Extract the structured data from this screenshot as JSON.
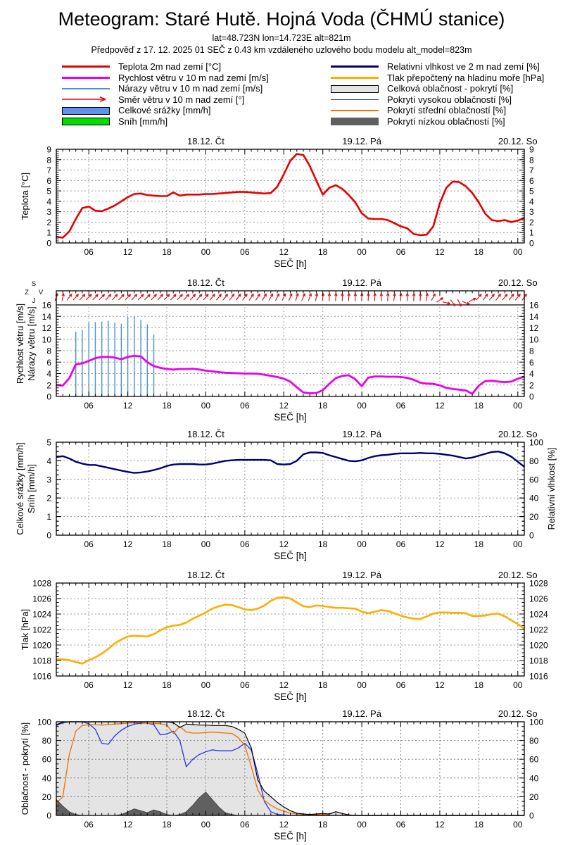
{
  "header": {
    "title": "Meteogram: Staré Hutě. Hojná Voda (ČHMÚ stanice)",
    "subtitle_location": "lat=48.723N lon=14.723E alt=821m",
    "subtitle_forecast": "Předpověď z 17. 12. 2025 01 SEČ z 0.43 km vzdáleného uzlového bodu modelu alt_model=823m"
  },
  "legend": {
    "left": [
      {
        "label": "Teplota 2m nad zemí [°C]",
        "swatch": "line",
        "color": "#e60000",
        "thick": 3
      },
      {
        "label": "Rychlost větru v 10 m nad zemí [m/s]",
        "swatch": "line",
        "color": "#ea00ea",
        "thick": 3
      },
      {
        "label": "Nárazy větru v 10 m nad zemí [m/s]",
        "swatch": "line",
        "color": "#4a90d0",
        "thick": 1.5
      },
      {
        "label": "Směr větru v 10 m nad zemí [°]",
        "swatch": "arrow",
        "color": "#e60000",
        "thick": 1.5
      },
      {
        "label": "Celkové srážky [mm/h]",
        "swatch": "box",
        "color": "#6090f0",
        "border": "#000000"
      },
      {
        "label": "Sníh [mm/h]",
        "swatch": "box",
        "color": "#00dd00",
        "border": "#000000"
      }
    ],
    "right": [
      {
        "label": "Relativní vlhkost ve 2 m nad zemí [%]",
        "swatch": "line",
        "color": "#000073",
        "thick": 3
      },
      {
        "label": "Tlak přepočtený na hladinu moře [hPa]",
        "swatch": "line",
        "color": "#ffae00",
        "thick": 3
      },
      {
        "label": "Celková oblačnost - pokrytí [%]",
        "swatch": "box",
        "color": "#e4e4e4",
        "border": "#000000"
      },
      {
        "label": "Pokrytí vysokou oblačností [%]",
        "swatch": "line",
        "color": "#2233ee",
        "thick": 1.5
      },
      {
        "label": "Pokrytí střední oblačností [%]",
        "swatch": "line",
        "color": "#f07000",
        "thick": 1.5
      },
      {
        "label": "Pokrytí nízkou oblačností [%]",
        "swatch": "box",
        "color": "#606060",
        "border": "#606060"
      }
    ]
  },
  "axis": {
    "hours_start": 1,
    "hours_end": 73,
    "x_major_every": 6,
    "x_tick_label_cycle": [
      "06",
      "12",
      "18",
      "00"
    ],
    "xlabel": "SEČ [h]",
    "day_labels": [
      {
        "hour": 24,
        "label": "18.12. Čt"
      },
      {
        "hour": 48,
        "label": "19.12. Pá"
      },
      {
        "hour": 72,
        "label": "20.12. So"
      }
    ]
  },
  "compass": {
    "north": "S",
    "south": "J",
    "east": "V",
    "west": "Z"
  },
  "chart_data": [
    {
      "id": "temperature",
      "type": "line",
      "ylabels_left": [
        "Teplota [°C]"
      ],
      "ylim": [
        0,
        9
      ],
      "ytick": 1,
      "yminor": 0.2,
      "series": [
        {
          "name": "Teplota 2m nad zemí [°C]",
          "style": "line",
          "color": "#e60000",
          "width": 2.6,
          "values": [
            0.6,
            0.5,
            1.1,
            2.3,
            3.35,
            3.5,
            3.1,
            3.05,
            3.3,
            3.6,
            4.0,
            4.4,
            4.7,
            4.75,
            4.6,
            4.55,
            4.5,
            4.5,
            4.85,
            4.55,
            4.65,
            4.65,
            4.65,
            4.7,
            4.7,
            4.75,
            4.8,
            4.85,
            4.9,
            4.9,
            4.85,
            4.8,
            4.75,
            4.8,
            5.4,
            6.6,
            7.9,
            8.55,
            8.45,
            7.4,
            6.0,
            4.65,
            5.3,
            5.55,
            5.2,
            4.6,
            3.9,
            2.85,
            2.35,
            2.3,
            2.3,
            2.2,
            1.9,
            1.6,
            1.4,
            0.85,
            0.75,
            0.8,
            1.6,
            3.8,
            5.3,
            5.9,
            5.85,
            5.45,
            4.8,
            3.9,
            2.8,
            2.2,
            2.1,
            2.2,
            2.0,
            2.15,
            2.4
          ]
        }
      ]
    },
    {
      "id": "wind",
      "type": "line",
      "ylabels_left": [
        "Rychlost větru [m/s]",
        "Nárazy větru [m/s]"
      ],
      "ylim": [
        0,
        16
      ],
      "ytick": 2,
      "yminor": 0.5,
      "top_line_value": 16,
      "series": [
        {
          "name": "Rychlost větru v 10 m nad zemí [m/s]",
          "style": "line",
          "color": "#ea00ea",
          "width": 2.8,
          "values": [
            2.0,
            1.9,
            3.2,
            5.6,
            5.8,
            6.2,
            6.7,
            6.9,
            6.9,
            6.8,
            6.5,
            6.9,
            7.1,
            7.0,
            6.0,
            5.3,
            5.0,
            4.8,
            4.7,
            4.8,
            4.8,
            4.85,
            4.7,
            4.5,
            4.4,
            4.25,
            4.15,
            4.1,
            4.05,
            4.0,
            4.0,
            3.95,
            3.8,
            3.6,
            3.4,
            3.1,
            2.6,
            1.6,
            0.7,
            0.55,
            0.6,
            1.1,
            2.2,
            3.2,
            3.6,
            3.7,
            3.0,
            1.8,
            3.3,
            3.5,
            3.5,
            3.45,
            3.45,
            3.4,
            3.25,
            2.9,
            2.4,
            2.25,
            2.2,
            1.95,
            1.5,
            1.3,
            1.2,
            1.05,
            0.45,
            1.9,
            2.7,
            2.75,
            2.6,
            2.5,
            2.6,
            3.1,
            3.45
          ]
        }
      ],
      "gusts": {
        "name": "Nárazy větru v 10 m nad zemí [m/s]",
        "color": "#4a90d0",
        "hours": [
          4,
          5,
          6,
          7,
          8,
          9,
          10,
          11,
          12,
          13,
          14,
          15,
          16
        ],
        "values": [
          11.3,
          11.6,
          12.9,
          13.0,
          13.1,
          13.2,
          12.9,
          12.7,
          13.9,
          14.0,
          13.4,
          12.6,
          10.8
        ]
      },
      "wind_direction": {
        "name": "Směr větru v 10 m nad zemí [°]",
        "color": "#e60000",
        "angles_deg": [
          18,
          12,
          38,
          42,
          44,
          45,
          44,
          45,
          44,
          43,
          44,
          45,
          43,
          44,
          45,
          44,
          43,
          45,
          44,
          44,
          43,
          42,
          42,
          41,
          40,
          40,
          39,
          38,
          37,
          36,
          35,
          34,
          32,
          30,
          28,
          26,
          22,
          18,
          24,
          20,
          12,
          6,
          2,
          4,
          1,
          3,
          1,
          4,
          2,
          3,
          1,
          4,
          8,
          4,
          1,
          3,
          2,
          10,
          30,
          55,
          105,
          145,
          155,
          110,
          65,
          42,
          38,
          40,
          38,
          40,
          38,
          40,
          36
        ]
      }
    },
    {
      "id": "humidity",
      "type": "line",
      "ylabels_left": [
        "Celkové srážky [mm/h]",
        "Sníh [mm/h]"
      ],
      "ylim": [
        0,
        5
      ],
      "ytick": 1,
      "yminor": 0.25,
      "ylabel_right": "Relativní vlhkost [%]",
      "ylim_right": [
        0,
        100
      ],
      "ytick_right": 20,
      "yminor_right": 5,
      "series": [
        {
          "name": "Relativní vlhkost ve 2 m nad zemí [%]",
          "style": "line",
          "axis": "right",
          "color": "#000073",
          "width": 2.4,
          "values": [
            84,
            85,
            82.5,
            79,
            77,
            75.5,
            75.5,
            74,
            72.5,
            71,
            69.5,
            68,
            67,
            67.5,
            68.5,
            70,
            72,
            74.5,
            76,
            76.5,
            76.5,
            76.5,
            76,
            76,
            77,
            78.5,
            80,
            80.5,
            81,
            81,
            81,
            81,
            81,
            80.5,
            76.5,
            76,
            76.5,
            80,
            87,
            89,
            89,
            88.5,
            86,
            84,
            82,
            80,
            79.5,
            80.5,
            83,
            85,
            86,
            86.5,
            87.5,
            88,
            88,
            88,
            88.5,
            88,
            88,
            87.5,
            86.5,
            85.5,
            84,
            82.5,
            83.5,
            85.5,
            87.5,
            89.5,
            90,
            88,
            84.5,
            79,
            73.5
          ]
        }
      ]
    },
    {
      "id": "pressure",
      "type": "line",
      "ylabels_left": [
        "Tlak [hPa]"
      ],
      "ylim": [
        1016,
        1028
      ],
      "ytick": 2,
      "yminor": 0.5,
      "series": [
        {
          "name": "Tlak přepočtený na hladinu moře [hPa]",
          "style": "line",
          "color": "#ffae00",
          "width": 2.6,
          "values": [
            1018.2,
            1018.15,
            1018.05,
            1017.8,
            1017.6,
            1018.05,
            1018.4,
            1018.9,
            1019.5,
            1020.2,
            1020.7,
            1021.1,
            1021.2,
            1021.15,
            1021.1,
            1021.4,
            1021.9,
            1022.3,
            1022.5,
            1022.6,
            1022.9,
            1023.4,
            1023.8,
            1024.2,
            1024.7,
            1025.0,
            1025.2,
            1025.15,
            1024.9,
            1024.6,
            1024.5,
            1024.7,
            1025.1,
            1025.7,
            1026.1,
            1026.15,
            1026.0,
            1025.5,
            1025.0,
            1024.9,
            1025.1,
            1025.05,
            1024.9,
            1024.8,
            1024.8,
            1024.75,
            1024.7,
            1024.3,
            1024.1,
            1024.3,
            1024.5,
            1024.4,
            1024.1,
            1023.8,
            1023.55,
            1023.4,
            1023.35,
            1023.7,
            1024.05,
            1024.2,
            1024.2,
            1024.15,
            1024.15,
            1024.1,
            1023.75,
            1023.75,
            1023.8,
            1024.0,
            1024.05,
            1023.7,
            1023.2,
            1022.7,
            1022.1
          ]
        }
      ]
    },
    {
      "id": "cloud",
      "type": "area+line",
      "ylabels_left": [
        "Oblačnost - pokrytí [%]"
      ],
      "ylim": [
        0,
        100
      ],
      "ytick": 20,
      "yminor": 5,
      "series": [
        {
          "name": "Celková oblačnost - pokrytí [%]",
          "style": "area",
          "fill": "#e4e4e4",
          "outline": "#000000",
          "values": [
            97,
            99.5,
            100,
            100,
            100,
            100,
            100,
            100,
            100,
            100,
            100,
            100,
            100,
            100,
            100,
            100,
            100,
            100,
            99,
            94,
            97.5,
            97,
            96.5,
            96.5,
            96,
            96,
            96,
            95,
            92,
            88,
            72,
            38,
            26,
            20,
            14,
            9,
            5,
            2.5,
            1.5,
            1,
            1.5,
            2,
            1.5,
            4,
            2,
            0.5,
            0,
            0,
            0,
            0,
            0,
            0,
            0,
            0,
            0,
            0,
            0,
            0,
            0,
            0,
            0,
            0,
            0,
            0,
            0,
            0,
            0,
            0,
            0,
            0,
            0,
            0,
            0
          ]
        },
        {
          "name": "Pokrytí nízkou oblačností [%]",
          "style": "area",
          "fill": "#606060",
          "outline": "#3c3c3c",
          "values": [
            17,
            10,
            4,
            1,
            0,
            0,
            0,
            0,
            0,
            0,
            1,
            4,
            7,
            5,
            3,
            6,
            4,
            1,
            0,
            1,
            4,
            11,
            19,
            25,
            17,
            9,
            3,
            1,
            0,
            0,
            0,
            0,
            0,
            0,
            0,
            0,
            0,
            0,
            0,
            0,
            0,
            0,
            0,
            0,
            0,
            0,
            0,
            0,
            0,
            0,
            0,
            0,
            0,
            0,
            0,
            0,
            0,
            0,
            0,
            0,
            0,
            0,
            0,
            0,
            0,
            0,
            0,
            0,
            0,
            0,
            0,
            0,
            0
          ]
        },
        {
          "name": "Pokrytí vysokou oblačností [%]",
          "style": "line",
          "color": "#2233ee",
          "width": 1.3,
          "values": [
            96,
            99,
            100,
            100,
            100,
            98,
            92,
            77,
            76,
            85,
            91,
            95,
            97.5,
            98.5,
            98.5,
            97,
            86,
            87,
            90,
            80,
            52,
            60,
            65,
            68,
            70,
            69,
            69,
            69,
            72,
            77,
            70,
            45,
            15,
            4,
            1,
            0.5,
            0,
            0,
            0,
            0,
            0,
            0,
            0,
            0,
            0,
            0,
            0,
            0,
            0,
            0,
            0,
            0,
            0,
            0,
            0,
            0,
            0,
            0,
            0,
            0,
            0,
            0,
            0,
            0,
            0,
            0,
            0,
            0,
            0,
            0,
            0,
            0,
            0
          ]
        },
        {
          "name": "Pokrytí střední oblačností [%]",
          "style": "line",
          "color": "#f07000",
          "width": 1.3,
          "values": [
            13,
            20,
            65,
            90,
            96,
            97,
            97,
            96.5,
            97,
            97.5,
            98,
            98.5,
            99,
            99,
            98.5,
            98,
            98,
            96.5,
            87.5,
            95,
            89,
            88,
            88,
            88.5,
            89,
            88.5,
            88,
            87.5,
            83,
            75,
            52,
            27,
            16,
            11,
            7,
            4.5,
            2.5,
            1.5,
            1,
            0.8,
            0.8,
            0.8,
            1.2,
            4,
            2,
            0.5,
            0,
            0,
            0,
            0,
            0,
            0,
            0,
            0,
            0,
            0,
            0,
            0,
            0,
            0,
            0,
            0,
            0,
            0,
            0,
            0,
            0,
            0,
            0,
            0,
            0,
            0,
            0
          ]
        }
      ]
    }
  ]
}
